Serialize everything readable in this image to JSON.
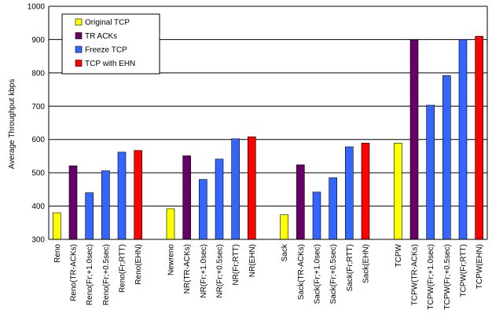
{
  "chart_data": {
    "type": "bar",
    "ylabel": "Average Throughput kbps",
    "ylim": [
      300,
      1000
    ],
    "yticks": [
      300,
      400,
      500,
      600,
      700,
      800,
      900,
      1000
    ],
    "grid": "horizontal",
    "legend_position": "top-left",
    "legend": [
      {
        "key": "original",
        "label": "Original TCP",
        "color": "#ffff00"
      },
      {
        "key": "tracks",
        "label": "TR ACKs",
        "color": "#660066"
      },
      {
        "key": "freeze",
        "label": "Freeze TCP",
        "color": "#3366ff"
      },
      {
        "key": "ehn",
        "label": "TCP with EHN",
        "color": "#ff0000"
      }
    ],
    "categories": [
      {
        "label": "Reno",
        "value": 380,
        "series": "original"
      },
      {
        "label": "Reno(TR-ACKs)",
        "value": 521,
        "series": "tracks"
      },
      {
        "label": "Reno(Fr;+1.0sec)",
        "value": 440,
        "series": "freeze"
      },
      {
        "label": "Reno(Fr;+0.5sec)",
        "value": 506,
        "series": "freeze"
      },
      {
        "label": "Reno(Fr;RTT)",
        "value": 562,
        "series": "freeze"
      },
      {
        "label": "Reno(EHN)",
        "value": 567,
        "series": "ehn"
      },
      {
        "label": "",
        "value": null,
        "series": null
      },
      {
        "label": "Newreno",
        "value": 392,
        "series": "original"
      },
      {
        "label": "NR(TR-ACKs)",
        "value": 551,
        "series": "tracks"
      },
      {
        "label": "NR(Fr;+1.0sec)",
        "value": 480,
        "series": "freeze"
      },
      {
        "label": "NR(Fr;+0.5sec)",
        "value": 541,
        "series": "freeze"
      },
      {
        "label": "NR(Fr;RTT)",
        "value": 602,
        "series": "freeze"
      },
      {
        "label": "NR(EHN)",
        "value": 608,
        "series": "ehn"
      },
      {
        "label": "",
        "value": null,
        "series": null
      },
      {
        "label": "Sack",
        "value": 374,
        "series": "original"
      },
      {
        "label": "Sack(TR-ACKs)",
        "value": 524,
        "series": "tracks"
      },
      {
        "label": "Sack(Fr;+1.0sec)",
        "value": 442,
        "series": "freeze"
      },
      {
        "label": "Sack(Fr;+0.5sec)",
        "value": 485,
        "series": "freeze"
      },
      {
        "label": "Sack(Fr;RTT)",
        "value": 578,
        "series": "freeze"
      },
      {
        "label": "Sack(EHN)",
        "value": 589,
        "series": "ehn"
      },
      {
        "label": "",
        "value": null,
        "series": null
      },
      {
        "label": "TCPW",
        "value": 589,
        "series": "original"
      },
      {
        "label": "TCPW(TR-ACKs)",
        "value": 900,
        "series": "tracks"
      },
      {
        "label": "TCPW(Fr;+1.0sec)",
        "value": 703,
        "series": "freeze"
      },
      {
        "label": "TCPW(Fr;+0.5sec)",
        "value": 792,
        "series": "freeze"
      },
      {
        "label": "TCPW(Fr;RTT)",
        "value": 900,
        "series": "freeze"
      },
      {
        "label": "TCPW(EHN)",
        "value": 910,
        "series": "ehn"
      }
    ]
  }
}
